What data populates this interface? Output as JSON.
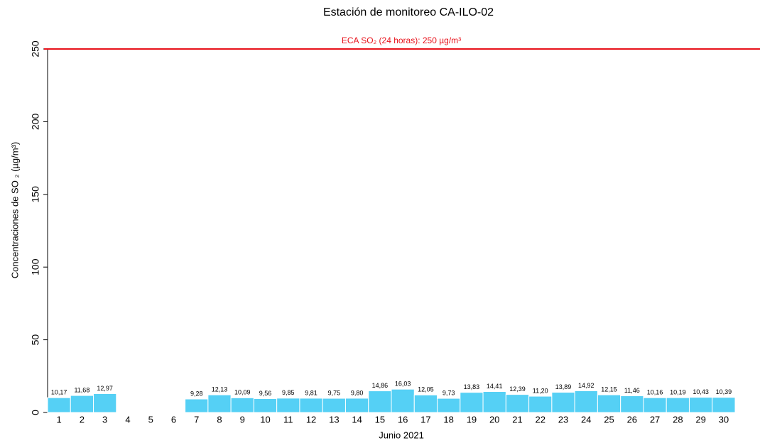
{
  "chart_data": {
    "type": "bar",
    "title": "Estación de monitoreo  CA-ILO-02",
    "x_label": "Junio 2021",
    "y_label": "Concentraciones de SO ₂ (µg/m³)",
    "categories": [
      "1",
      "2",
      "3",
      "4",
      "5",
      "6",
      "7",
      "8",
      "9",
      "10",
      "11",
      "12",
      "13",
      "14",
      "15",
      "16",
      "17",
      "18",
      "19",
      "20",
      "21",
      "22",
      "23",
      "24",
      "25",
      "26",
      "27",
      "28",
      "29",
      "30"
    ],
    "values": [
      10.17,
      11.68,
      12.97,
      null,
      null,
      null,
      9.28,
      12.13,
      10.09,
      9.56,
      9.85,
      9.81,
      9.75,
      9.8,
      14.86,
      16.03,
      12.05,
      9.73,
      13.83,
      14.41,
      12.39,
      11.2,
      13.89,
      14.92,
      12.15,
      11.46,
      10.16,
      10.19,
      10.43,
      10.39
    ],
    "value_labels": [
      "10,17",
      "11,68",
      "12,97",
      null,
      null,
      null,
      "9,28",
      "12,13",
      "10,09",
      "9,56",
      "9,85",
      "9,81",
      "9,75",
      "9,80",
      "14,86",
      "16,03",
      "12,05",
      "9,73",
      "13,83",
      "14,41",
      "12,39",
      "11,20",
      "13,89",
      "14,92",
      "12,15",
      "11,46",
      "10,16",
      "10,19",
      "10,43",
      "10,39"
    ],
    "color": "#55d0f5",
    "ylim": [
      0,
      250
    ],
    "yticks": [
      0,
      50,
      100,
      150,
      200,
      250
    ],
    "threshold": {
      "value": 250,
      "label": "ECA SO₂ (24 horas): 250 µg/m³",
      "color": "#e8121b"
    }
  }
}
